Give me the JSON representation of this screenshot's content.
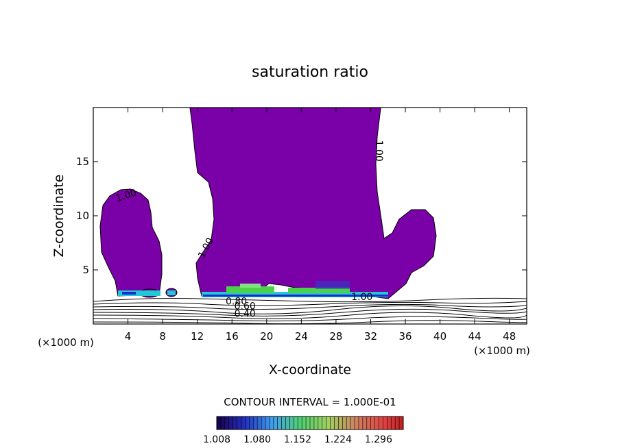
{
  "chart_data": {
    "type": "contour",
    "title": "saturation ratio",
    "xlabel": "X-coordinate",
    "ylabel": "Z-coordinate",
    "x_unit_label": "(×1000 m)",
    "x_unit_label_right": "(×1000 m)",
    "xlim": [
      0,
      50
    ],
    "ylim": [
      0,
      20
    ],
    "x_ticks": [
      4,
      8,
      12,
      16,
      20,
      24,
      28,
      32,
      36,
      40,
      44,
      48
    ],
    "y_ticks": [
      5,
      10,
      15
    ],
    "contour_interval_text": "CONTOUR INTERVAL = 1.000E-01",
    "contour_labels": [
      {
        "text": "1.00",
        "x": 3.9,
        "z": 11.6,
        "angle": -18
      },
      {
        "text": "1.00",
        "x": 13.3,
        "z": 6.9,
        "angle": -62
      },
      {
        "text": "1.00",
        "x": 32.6,
        "z": 16.0,
        "angle": 90
      },
      {
        "text": "1.00",
        "x": 31.0,
        "z": 2.2,
        "angle": 0
      },
      {
        "text": "0.80",
        "x": 16.5,
        "z": 1.8,
        "angle": 0
      },
      {
        "text": "0.60",
        "x": 17.5,
        "z": 1.35,
        "angle": 0
      },
      {
        "text": "0.40",
        "x": 17.5,
        "z": 0.65,
        "angle": 0
      }
    ],
    "colorbar": {
      "min": 1.008,
      "max": 1.34,
      "tick_labels": [
        "1.008",
        "1.080",
        "1.152",
        "1.224",
        "1.296"
      ],
      "tick_values": [
        1.008,
        1.08,
        1.152,
        1.224,
        1.296
      ]
    },
    "colors": {
      "fill": "#7a00a8",
      "edge_green": "#4bd24b",
      "edge_cyan": "#22c8d8",
      "edge_blue": "#1a2bd0"
    }
  }
}
